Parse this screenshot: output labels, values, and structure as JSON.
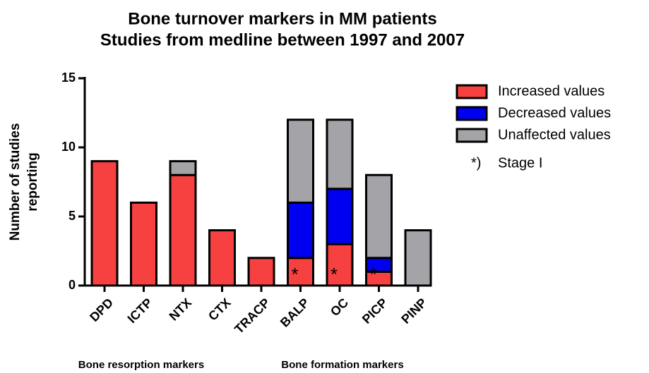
{
  "chart_data": {
    "type": "bar",
    "stacked": true,
    "title": "Bone turnover markers in MM patients",
    "subtitle": "Studies from medline between 1997 and 2007",
    "y_label": [
      "Number of studies",
      "reporting"
    ],
    "categories": [
      "DPD",
      "ICTP",
      "NTX",
      "CTX",
      "TRACP",
      "BALP",
      "OC",
      "PICP",
      "PINP"
    ],
    "series": [
      {
        "name": "Increased values",
        "color": "#f74040",
        "values": [
          9,
          6,
          8,
          4,
          2,
          2,
          3,
          1,
          0
        ]
      },
      {
        "name": "Decreased values",
        "color": "#0000f0",
        "values": [
          0,
          0,
          0,
          0,
          0,
          4,
          4,
          1,
          0
        ]
      },
      {
        "name": "Unaffected values",
        "color": "#a3a3a8",
        "values": [
          0,
          0,
          1,
          0,
          0,
          6,
          5,
          6,
          4
        ]
      }
    ],
    "ylim": [
      0,
      15
    ],
    "yticks": [
      0,
      5,
      10,
      15
    ],
    "stage_i": {
      "marker": "*",
      "legend_marker": "*)",
      "label": "Stage I",
      "categories": [
        "BALP",
        "OC",
        "PICP"
      ]
    },
    "groups": [
      "Bone resorption markers",
      "Bone formation markers"
    ],
    "legend_position": "right"
  }
}
